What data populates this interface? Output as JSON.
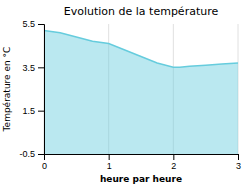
{
  "chart_data": {
    "type": "area",
    "title": "Evolution de la température",
    "xlabel": "heure par heure",
    "ylabel": "Température en °C",
    "x": [
      0,
      0.25,
      0.5,
      0.75,
      1.0,
      1.25,
      1.5,
      1.75,
      2.0,
      2.1,
      2.25,
      2.5,
      2.75,
      3.0
    ],
    "values": [
      5.2,
      5.1,
      4.9,
      4.7,
      4.6,
      4.3,
      4.0,
      3.7,
      3.5,
      3.5,
      3.55,
      3.6,
      3.65,
      3.7
    ],
    "color": "#66ccdd",
    "xlim": [
      0,
      3
    ],
    "ylim": [
      -0.5,
      5.5
    ],
    "xticks": [
      0,
      1,
      2,
      3
    ],
    "yticks": [
      -0.5,
      1.5,
      3.5,
      5.5
    ],
    "grid": "x"
  }
}
